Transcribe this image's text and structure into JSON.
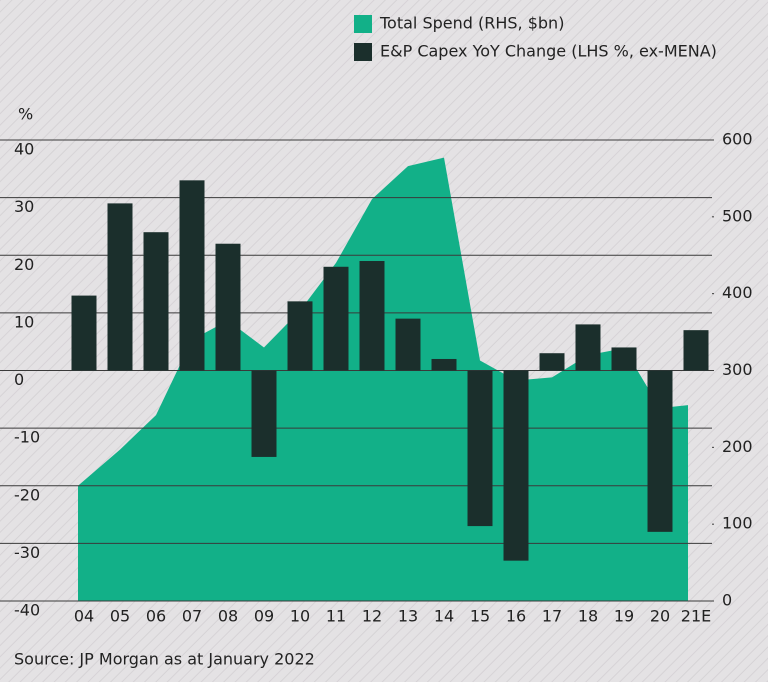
{
  "chart_data": {
    "type": "bar-area",
    "y_unit_label": "%",
    "source": "Source: JP Morgan as at January 2022",
    "categories": [
      "04",
      "05",
      "06",
      "07",
      "08",
      "09",
      "10",
      "11",
      "12",
      "13",
      "14",
      "15",
      "16",
      "17",
      "18",
      "19",
      "20",
      "21E"
    ],
    "series": [
      {
        "name": "Total Spend (RHS, $bn)",
        "color": "#12b088",
        "type": "area",
        "axis": "y2",
        "values": [
          150,
          197,
          242,
          340,
          365,
          330,
          378,
          440,
          523,
          566,
          577,
          313,
          287,
          291,
          320,
          329,
          251,
          255
        ]
      },
      {
        "name": "E&P Capex YoY Change (LHS %, ex-MENA)",
        "color": "#1b2f2c",
        "type": "bar",
        "values": [
          13,
          29,
          24,
          33,
          22,
          -15,
          12,
          18,
          19,
          9,
          2,
          -27,
          -33,
          3,
          8,
          4,
          -28,
          7
        ]
      }
    ],
    "ylim": [
      -40,
      40
    ],
    "yticks": [
      -40,
      -30,
      -20,
      -10,
      0,
      10,
      20,
      30,
      40
    ],
    "y2lim": [
      0,
      600
    ],
    "y2ticks": [
      0,
      100,
      200,
      300,
      400,
      500,
      600
    ],
    "grid": true
  }
}
